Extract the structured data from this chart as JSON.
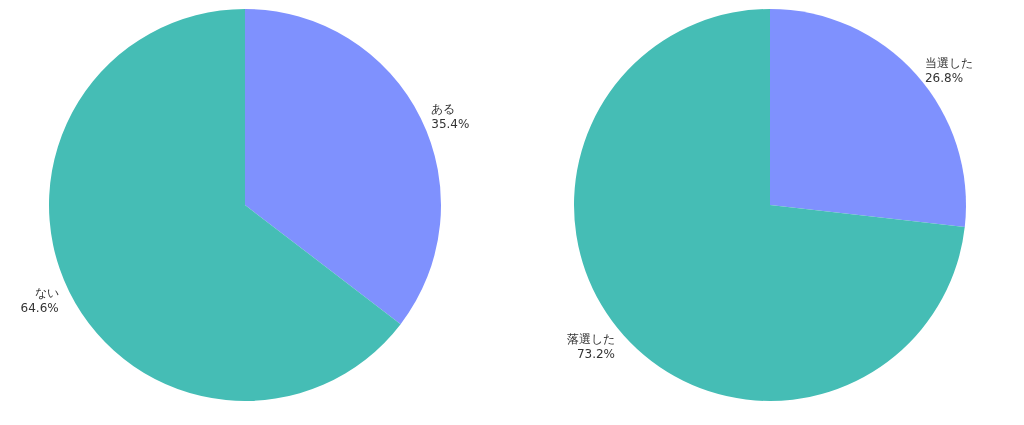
{
  "chart_data": [
    {
      "type": "pie",
      "categories": [
        "ある",
        "ない"
      ],
      "values": [
        35.4,
        64.6
      ],
      "colors": [
        "#7f91fe",
        "#45bdb5"
      ],
      "value_labels": [
        "35.4%",
        "64.6%"
      ]
    },
    {
      "type": "pie",
      "categories": [
        "当選した",
        "落選した"
      ],
      "values": [
        26.8,
        73.2
      ],
      "colors": [
        "#7f91fe",
        "#45bdb5"
      ],
      "value_labels": [
        "26.8%",
        "73.2%"
      ]
    }
  ]
}
